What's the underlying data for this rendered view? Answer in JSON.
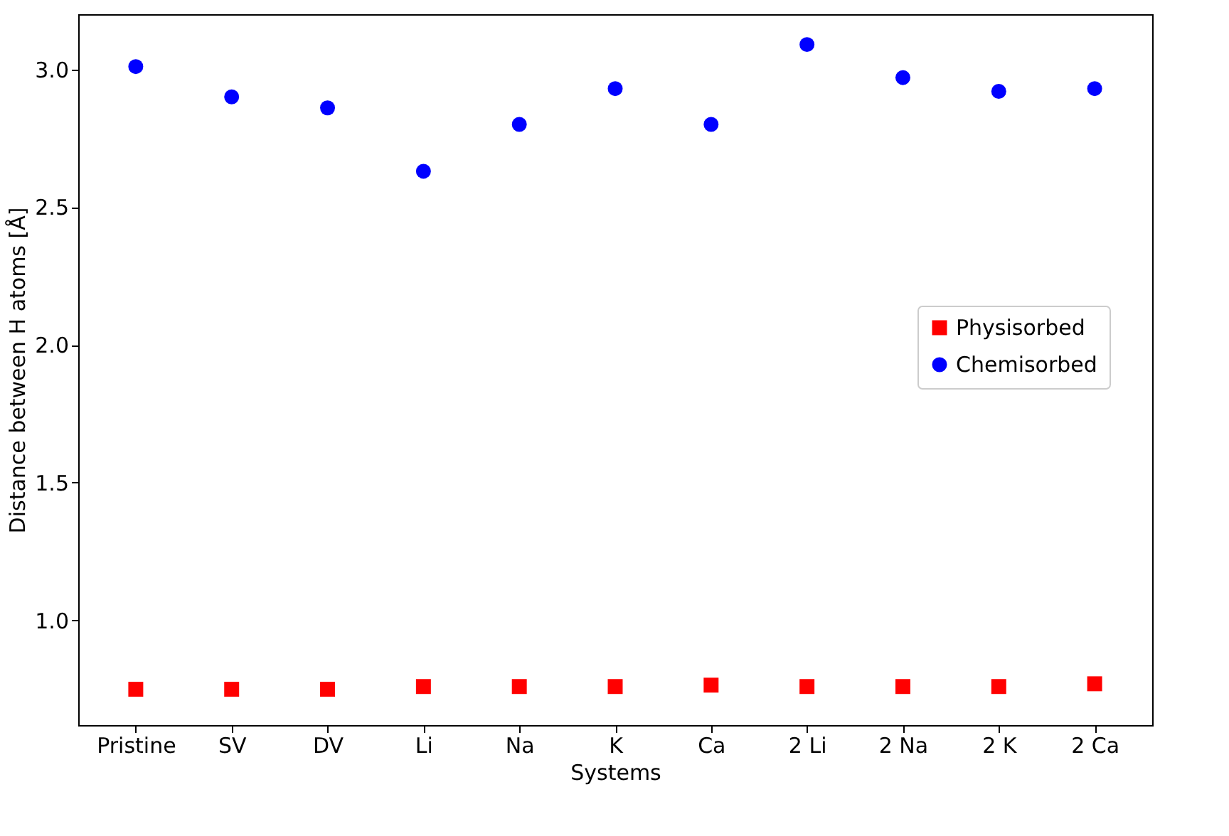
{
  "chart_data": {
    "type": "scatter",
    "xlabel": "Systems",
    "ylabel": "Distance between H atoms [Å]",
    "categories": [
      "Pristine",
      "SV",
      "DV",
      "Li",
      "Na",
      "K",
      "Ca",
      "2 Li",
      "2 Na",
      "2 K",
      "2 Ca"
    ],
    "series": [
      {
        "name": "Physisorbed",
        "color": "#ff0000",
        "marker": "square",
        "values": [
          0.75,
          0.75,
          0.75,
          0.76,
          0.76,
          0.76,
          0.765,
          0.76,
          0.76,
          0.76,
          0.77
        ]
      },
      {
        "name": "Chemisorbed",
        "color": "#0000ff",
        "marker": "circle",
        "values": [
          3.01,
          2.9,
          2.86,
          2.63,
          2.8,
          2.93,
          2.8,
          3.09,
          2.97,
          2.92,
          2.93
        ]
      }
    ],
    "ylim": [
      0.62,
      3.2
    ],
    "yticks": [
      {
        "value": 1,
        "label": "1.0"
      },
      1.5,
      {
        "value": 2,
        "label": "2.0"
      },
      2.5,
      {
        "value": 3,
        "label": "3.0"
      }
    ],
    "grid": false,
    "legend": "right"
  }
}
